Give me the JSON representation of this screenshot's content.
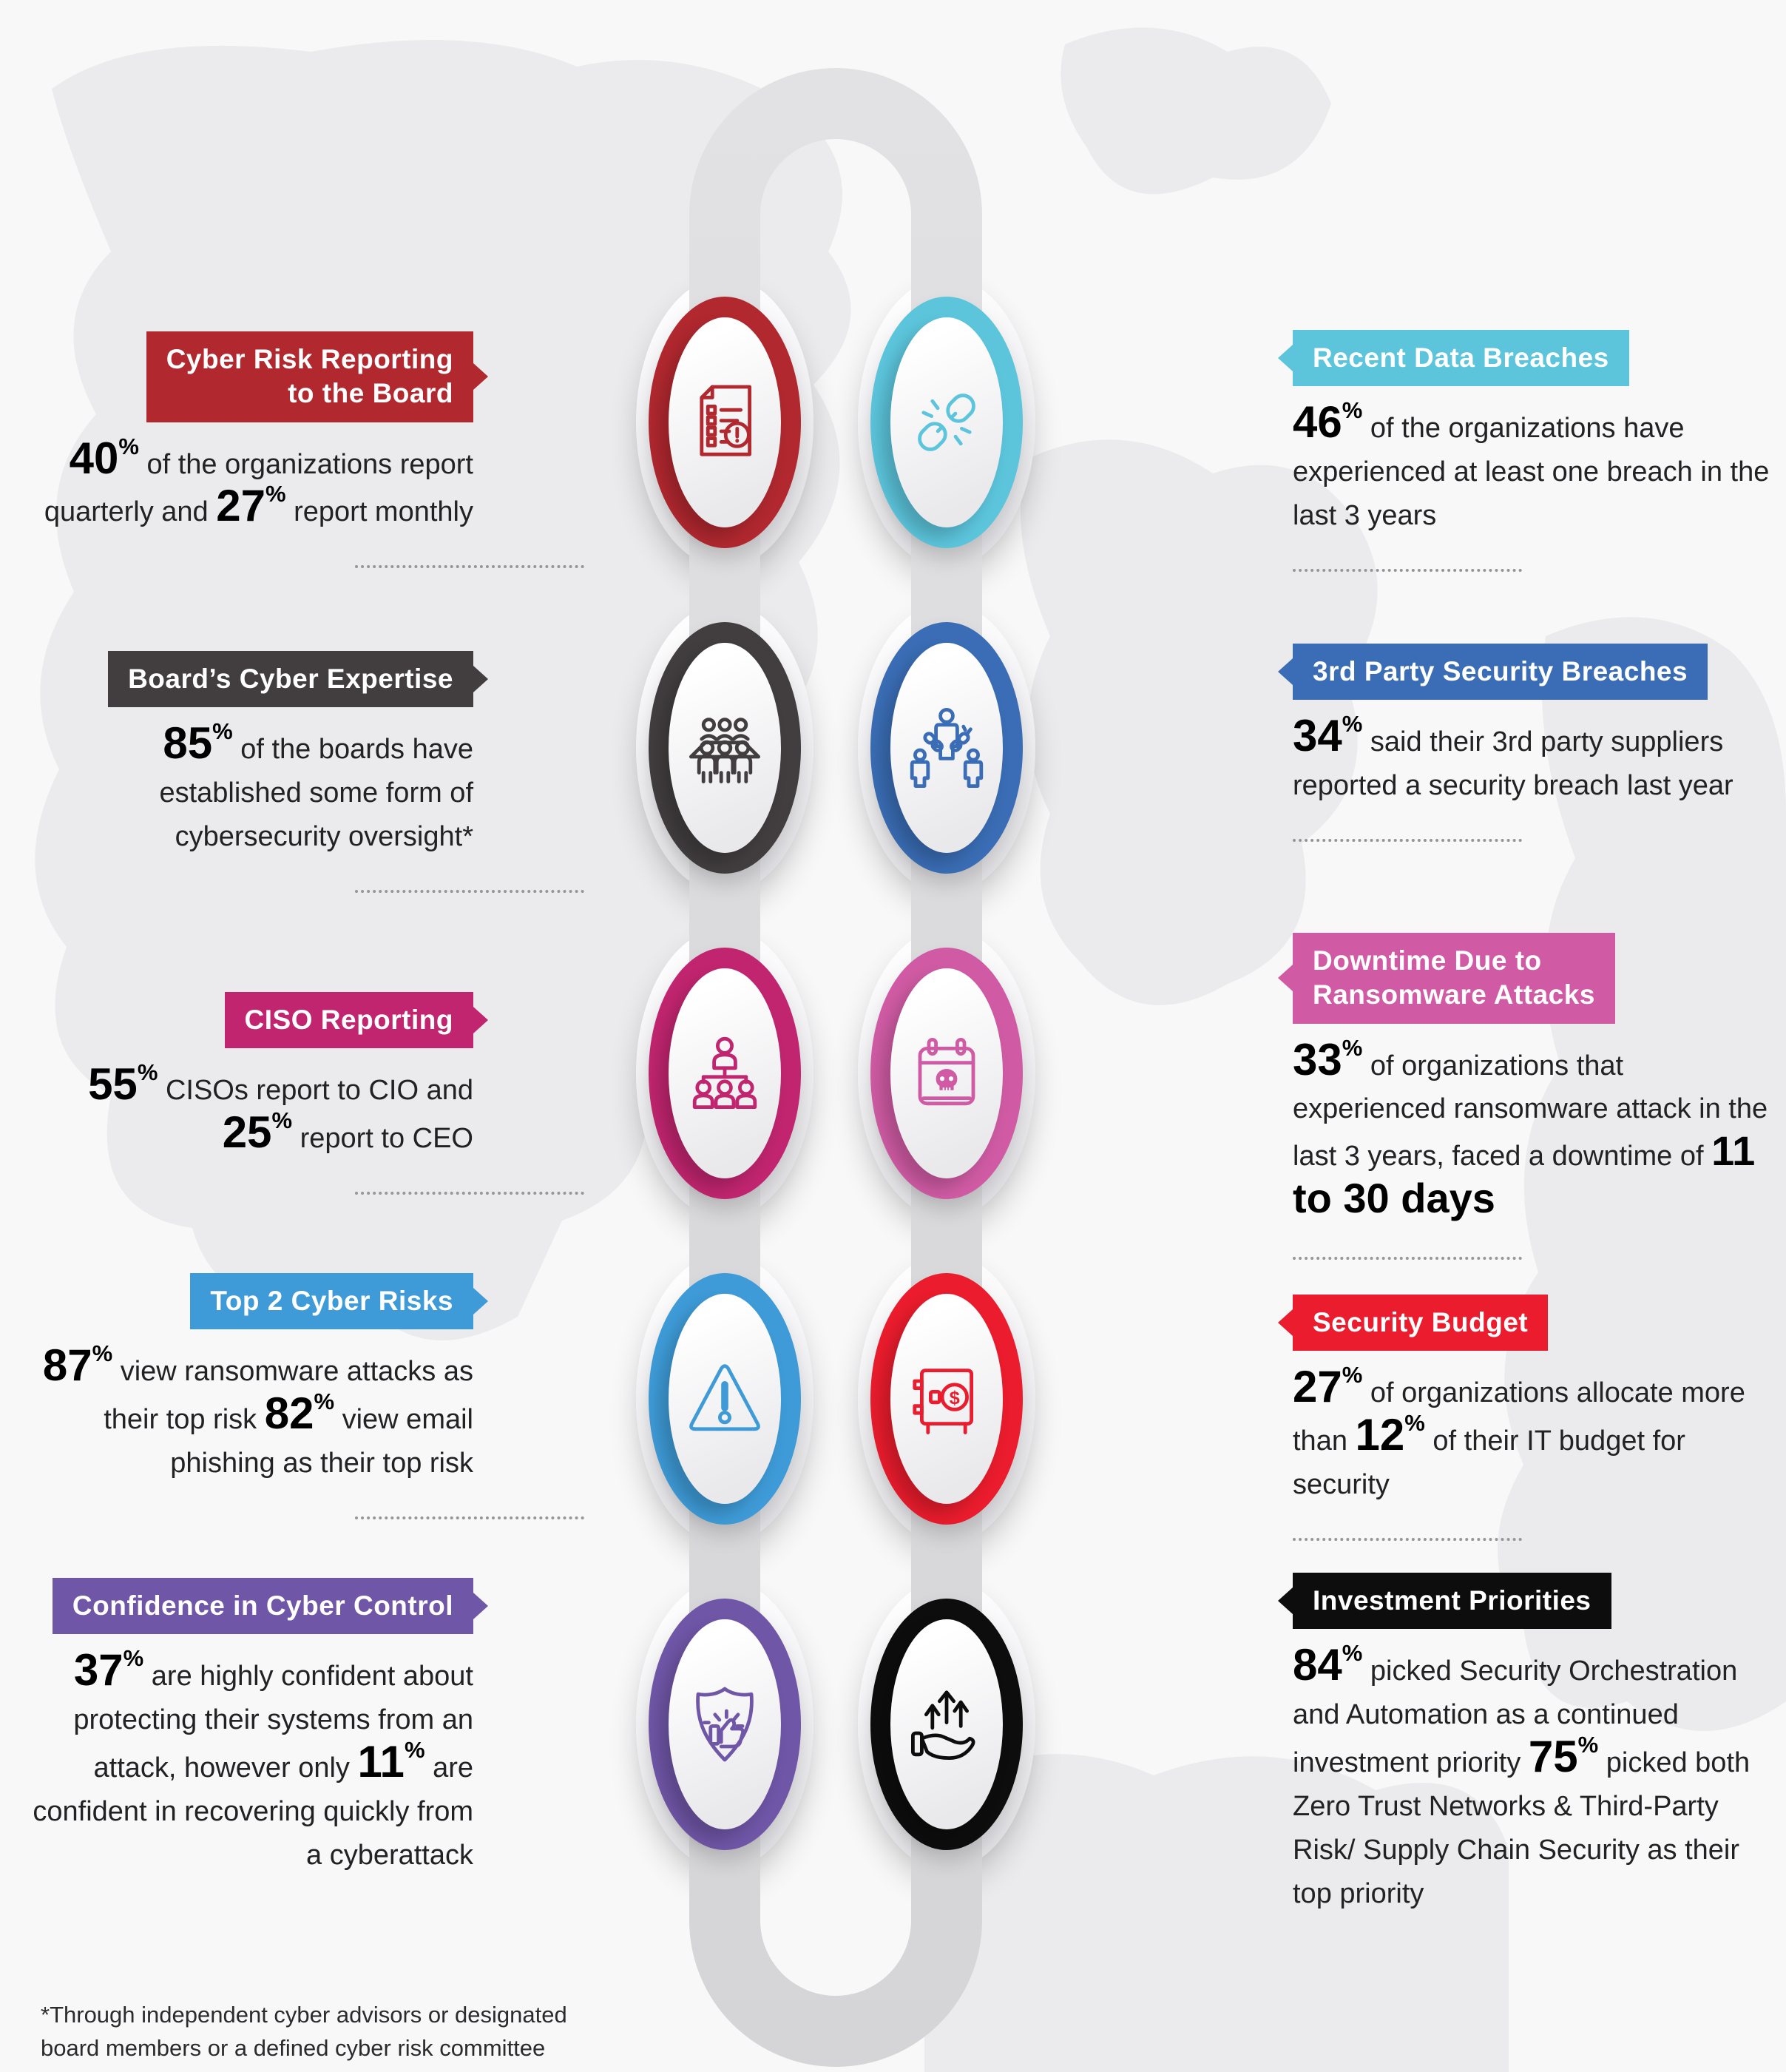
{
  "colors": {
    "background": "#f8f8f9",
    "map": "#ebebed",
    "loop_light": "#e2e2e4",
    "loop_dark": "#d5d5d8",
    "body_text": "#222225",
    "stat_text": "#000000",
    "divider": "#95959a"
  },
  "left_sections": [
    {
      "id": "cyber-risk-reporting-to-the-board",
      "banner_lines": [
        "Cyber Risk Reporting",
        "to the Board"
      ],
      "accent": "#b1282f",
      "icon": "report-warning-icon",
      "body": [
        {
          "t": "40",
          "s": "num"
        },
        {
          "t": "%",
          "s": "sup"
        },
        {
          "t": " of the organizations report quarterly and ",
          "s": "n"
        },
        {
          "t": "27",
          "s": "num"
        },
        {
          "t": "%",
          "s": "sup"
        },
        {
          "t": " report monthly",
          "s": "n"
        }
      ]
    },
    {
      "id": "boards-cyber-expertise",
      "banner_lines": [
        "Board’s Cyber Expertise"
      ],
      "accent": "#423e3f",
      "icon": "board-meeting-icon",
      "body": [
        {
          "t": "85",
          "s": "num"
        },
        {
          "t": "%",
          "s": "sup"
        },
        {
          "t": " of the boards have established some form of cybersecurity oversight*",
          "s": "n"
        }
      ]
    },
    {
      "id": "ciso-reporting",
      "banner_lines": [
        "CISO Reporting"
      ],
      "accent": "#c1256f",
      "icon": "org-chart-icon",
      "body": [
        {
          "t": "55",
          "s": "num"
        },
        {
          "t": "%",
          "s": "sup"
        },
        {
          "t": " CISOs report to CIO and ",
          "s": "n"
        },
        {
          "t": "25",
          "s": "num"
        },
        {
          "t": "%",
          "s": "sup"
        },
        {
          "t": " report to CEO",
          "s": "n"
        }
      ]
    },
    {
      "id": "top-2-cyber-risks",
      "banner_lines": [
        "Top 2 Cyber Risks"
      ],
      "accent": "#3e9bd7",
      "icon": "warning-triangle-icon",
      "body": [
        {
          "t": "87",
          "s": "num"
        },
        {
          "t": "%",
          "s": "sup"
        },
        {
          "t": " view ransomware attacks as their top risk ",
          "s": "n"
        },
        {
          "t": "82",
          "s": "num"
        },
        {
          "t": "%",
          "s": "sup"
        },
        {
          "t": " view email phishing as their top risk",
          "s": "n"
        }
      ]
    },
    {
      "id": "confidence-in-cyber-control",
      "banner_lines": [
        "Confidence in Cyber Control"
      ],
      "accent": "#7056a7",
      "icon": "shield-thumbs-up-icon",
      "body": [
        {
          "t": "37",
          "s": "num"
        },
        {
          "t": "%",
          "s": "sup"
        },
        {
          "t": " are highly confident about protecting their systems from an attack, however only ",
          "s": "n"
        },
        {
          "t": "11",
          "s": "num"
        },
        {
          "t": "%",
          "s": "sup"
        },
        {
          "t": " are confident in recovering quickly from a cyberattack",
          "s": "n"
        }
      ]
    }
  ],
  "right_sections": [
    {
      "id": "recent-data-breaches",
      "banner_lines": [
        "Recent Data Breaches"
      ],
      "accent": "#5cc5dc",
      "icon": "broken-chain-icon",
      "body": [
        {
          "t": "46",
          "s": "num"
        },
        {
          "t": "%",
          "s": "sup"
        },
        {
          "t": " of the organizations have experienced at least one breach in the last 3 years",
          "s": "n"
        }
      ]
    },
    {
      "id": "3rd-party-security-breaches",
      "banner_lines": [
        "3rd Party Security Breaches"
      ],
      "accent": "#3a6db5",
      "icon": "third-party-chain-icon",
      "body": [
        {
          "t": "34",
          "s": "num"
        },
        {
          "t": "%",
          "s": "sup"
        },
        {
          "t": " said their 3rd party suppliers reported a security breach last year",
          "s": "n"
        }
      ]
    },
    {
      "id": "downtime-due-to-ransomware-attacks",
      "banner_lines": [
        "Downtime Due to",
        "Ransomware Attacks"
      ],
      "accent": "#d05ba4",
      "icon": "skull-calendar-icon",
      "body": [
        {
          "t": "33",
          "s": "num"
        },
        {
          "t": "%",
          "s": "sup"
        },
        {
          "t": " of organizations that experienced ransomware attack in the last 3 years, faced a downtime of ",
          "s": "n"
        },
        {
          "t": "11 to 30 days",
          "s": "b"
        }
      ]
    },
    {
      "id": "security-budget",
      "banner_lines": [
        "Security Budget"
      ],
      "accent": "#ea1c2d",
      "icon": "vault-icon",
      "body": [
        {
          "t": "27",
          "s": "num"
        },
        {
          "t": "%",
          "s": "sup"
        },
        {
          "t": " of organizations allocate more than ",
          "s": "n"
        },
        {
          "t": "12",
          "s": "num"
        },
        {
          "t": "%",
          "s": "sup"
        },
        {
          "t": " of their IT budget for security",
          "s": "n"
        }
      ]
    },
    {
      "id": "investment-priorities",
      "banner_lines": [
        "Investment Priorities"
      ],
      "accent": "#0d0d0d",
      "icon": "hand-growth-arrows-icon",
      "body": [
        {
          "t": "84",
          "s": "num"
        },
        {
          "t": "%",
          "s": "sup"
        },
        {
          "t": " picked Security Orchestration and Automation as a continued investment priority ",
          "s": "n"
        },
        {
          "t": "75",
          "s": "num"
        },
        {
          "t": "%",
          "s": "sup"
        },
        {
          "t": " picked both Zero Trust Networks & Third-Party Risk/ Supply Chain Security as their top priority",
          "s": "n"
        }
      ]
    }
  ],
  "footnote": {
    "lines": [
      "*Through independent cyber advisors or designated",
      "board members or a defined cyber risk committee"
    ]
  }
}
